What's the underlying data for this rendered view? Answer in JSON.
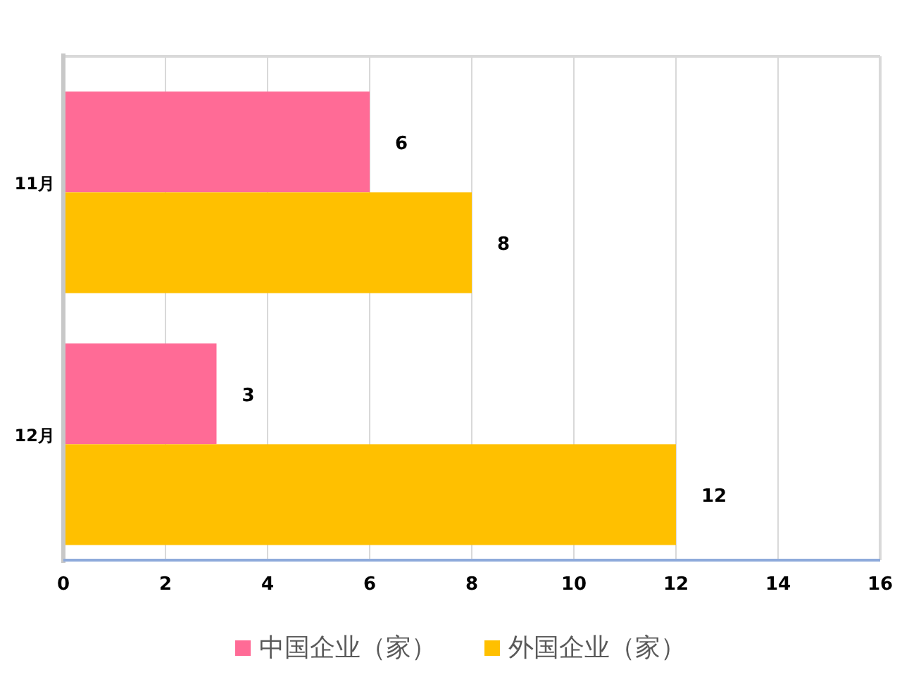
{
  "chart_data": {
    "type": "bar",
    "orientation": "horizontal",
    "categories": [
      "11月",
      "12月"
    ],
    "series": [
      {
        "name": "中国企业（家）",
        "color": "#ff6b96",
        "values": [
          6,
          3
        ]
      },
      {
        "name": "外国企业（家）",
        "color": "#ffc000",
        "values": [
          8,
          12
        ]
      }
    ],
    "xlim": [
      0,
      16
    ],
    "xticks": [
      0,
      2,
      4,
      6,
      8,
      10,
      12,
      14,
      16
    ],
    "grid": "x",
    "legend": "bottom",
    "data_labels": true
  }
}
